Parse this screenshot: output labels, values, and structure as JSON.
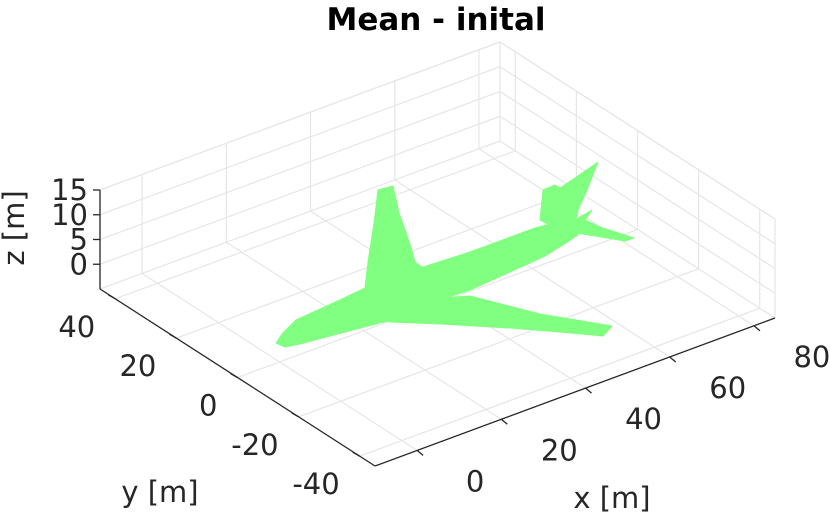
{
  "chart_data": {
    "type": "surface3d",
    "title": "Mean - inital",
    "xlabel": "x [m]",
    "ylabel": "y [m]",
    "zlabel": "z [m]",
    "xticks": [
      0,
      20,
      40,
      60,
      80
    ],
    "yticks": [
      -40,
      -20,
      0,
      20,
      40
    ],
    "zticks": [
      0,
      5,
      10,
      15
    ],
    "xlim": [
      -10,
      85
    ],
    "ylim": [
      -45,
      45
    ],
    "zlim": [
      -5,
      15
    ],
    "grid": true,
    "surface_color": "#80ff80",
    "object": "aircraft"
  }
}
